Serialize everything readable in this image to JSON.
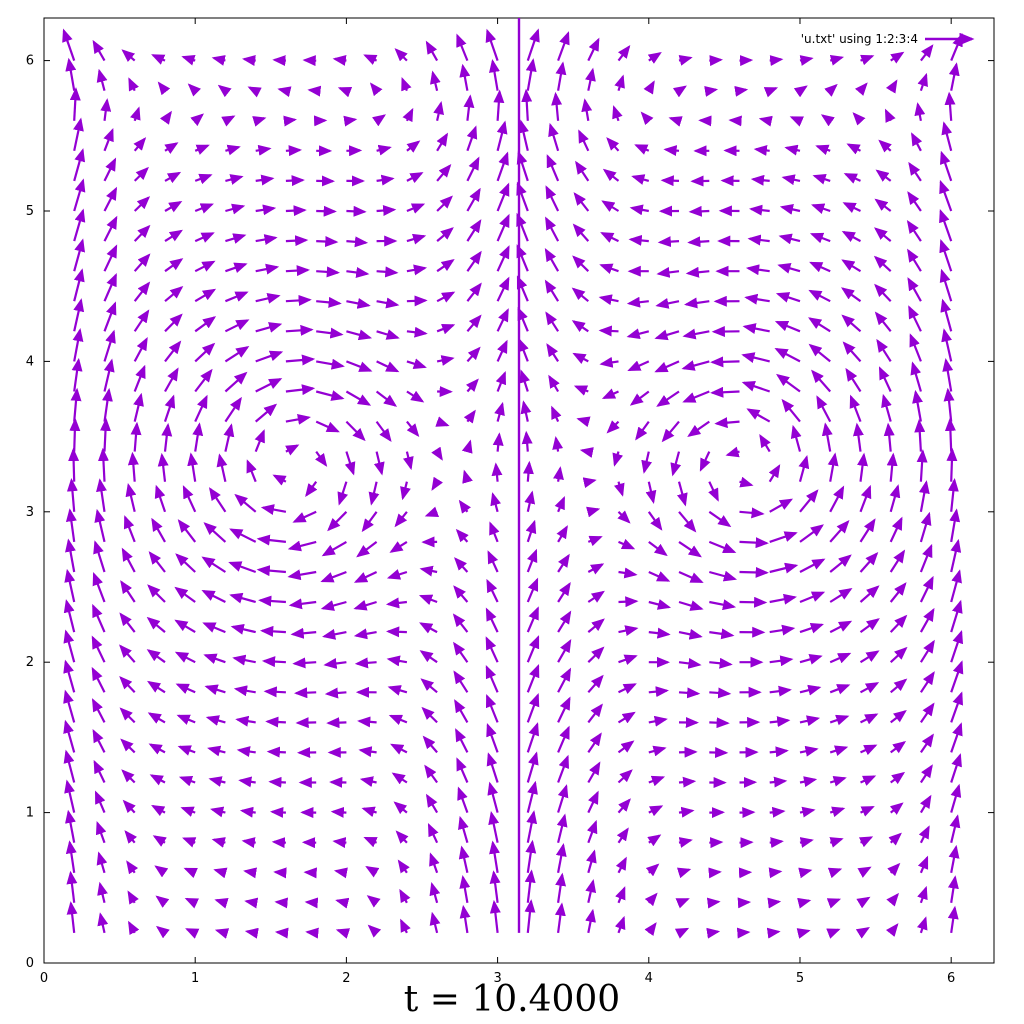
{
  "caption": "t = 10.4000",
  "chart_data": {
    "type": "vector_field",
    "legend": {
      "label": "'u.txt' using 1:2:3:4",
      "placement": "top-right"
    },
    "x_ticks": [
      "0",
      "1",
      "2",
      "3",
      "4",
      "5",
      "6"
    ],
    "y_ticks": [
      "0",
      "1",
      "2",
      "3",
      "4",
      "5",
      "6"
    ],
    "xlim": [
      0,
      6.2832
    ],
    "ylim": [
      0,
      6.2832
    ],
    "grid": false,
    "color": "#9400d3",
    "grid_spacing": 0.2,
    "symmetry": "mirror about x = 3.1416",
    "flow_pattern": "counter-rotating vortex pair centered near (1.6, 3.3) and (4.7, 3.3); strong upward jet along x = 3.1416; upward flow along domain side walls; return flow across the top",
    "vortex_centers": [
      [
        1.65,
        3.3
      ],
      [
        4.63,
        3.3
      ]
    ]
  }
}
